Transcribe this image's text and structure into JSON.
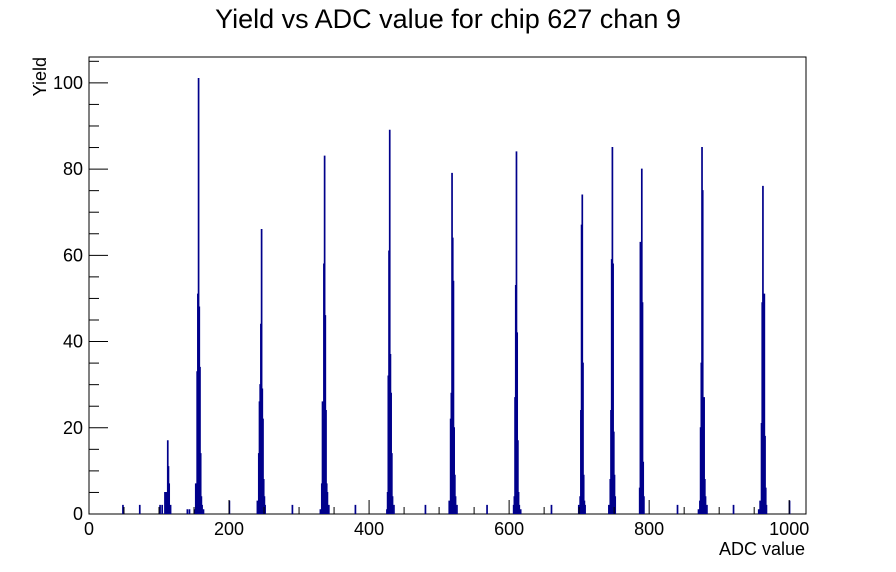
{
  "chart_data": {
    "type": "bar",
    "title": "Yield vs ADC value for chip 627 chan 9",
    "xlabel": "ADC value",
    "ylabel": "Yield",
    "xlim": [
      0,
      1024
    ],
    "ylim": [
      0,
      106
    ],
    "bin_width": 1,
    "xticks": [
      0,
      200,
      400,
      600,
      800,
      1000
    ],
    "yticks": [
      0,
      20,
      40,
      60,
      80,
      100
    ],
    "grid": false,
    "legend": "none",
    "series": [
      {
        "color": "#00008B",
        "points": [
          [
            48,
            2
          ],
          [
            72,
            2
          ],
          [
            101,
            2
          ],
          [
            104,
            2
          ],
          [
            108,
            5
          ],
          [
            110,
            5
          ],
          [
            112,
            17
          ],
          [
            113,
            11
          ],
          [
            114,
            7
          ],
          [
            116,
            2
          ],
          [
            140,
            1
          ],
          [
            143,
            1
          ],
          [
            150,
            1
          ],
          [
            152,
            7
          ],
          [
            154,
            33
          ],
          [
            155,
            51
          ],
          [
            156,
            101
          ],
          [
            157,
            48
          ],
          [
            158,
            34
          ],
          [
            159,
            14
          ],
          [
            160,
            4
          ],
          [
            161,
            2
          ],
          [
            163,
            1
          ],
          [
            200,
            3
          ],
          [
            240,
            3
          ],
          [
            242,
            14
          ],
          [
            243,
            26
          ],
          [
            244,
            30
          ],
          [
            245,
            44
          ],
          [
            246,
            66
          ],
          [
            247,
            29
          ],
          [
            248,
            22
          ],
          [
            249,
            8
          ],
          [
            250,
            4
          ],
          [
            251,
            2
          ],
          [
            290,
            2
          ],
          [
            330,
            1
          ],
          [
            332,
            7
          ],
          [
            333,
            26
          ],
          [
            334,
            22
          ],
          [
            335,
            58
          ],
          [
            336,
            83
          ],
          [
            337,
            46
          ],
          [
            338,
            24
          ],
          [
            339,
            7
          ],
          [
            340,
            5
          ],
          [
            342,
            2
          ],
          [
            380,
            2
          ],
          [
            425,
            1
          ],
          [
            426,
            5
          ],
          [
            427,
            32
          ],
          [
            428,
            61
          ],
          [
            429,
            89
          ],
          [
            430,
            37
          ],
          [
            431,
            28
          ],
          [
            432,
            14
          ],
          [
            433,
            4
          ],
          [
            435,
            2
          ],
          [
            480,
            2
          ],
          [
            514,
            3
          ],
          [
            516,
            22
          ],
          [
            517,
            28
          ],
          [
            518,
            79
          ],
          [
            519,
            64
          ],
          [
            520,
            54
          ],
          [
            521,
            20
          ],
          [
            522,
            9
          ],
          [
            523,
            4
          ],
          [
            525,
            2
          ],
          [
            568,
            2
          ],
          [
            606,
            2
          ],
          [
            607,
            4
          ],
          [
            608,
            27
          ],
          [
            609,
            53
          ],
          [
            610,
            84
          ],
          [
            611,
            42
          ],
          [
            612,
            17
          ],
          [
            613,
            5
          ],
          [
            614,
            2
          ],
          [
            616,
            1
          ],
          [
            660,
            2
          ],
          [
            699,
            2
          ],
          [
            701,
            4
          ],
          [
            702,
            24
          ],
          [
            703,
            67
          ],
          [
            704,
            74
          ],
          [
            705,
            35
          ],
          [
            706,
            9
          ],
          [
            707,
            3
          ],
          [
            708,
            2
          ],
          [
            742,
            2
          ],
          [
            744,
            8
          ],
          [
            745,
            24
          ],
          [
            746,
            59
          ],
          [
            747,
            85
          ],
          [
            748,
            58
          ],
          [
            749,
            19
          ],
          [
            750,
            9
          ],
          [
            751,
            4
          ],
          [
            786,
            6
          ],
          [
            787,
            63
          ],
          [
            788,
            39
          ],
          [
            789,
            80
          ],
          [
            790,
            49
          ],
          [
            791,
            12
          ],
          [
            792,
            4
          ],
          [
            840,
            2
          ],
          [
            870,
            1
          ],
          [
            872,
            3
          ],
          [
            873,
            20
          ],
          [
            874,
            35
          ],
          [
            875,
            85
          ],
          [
            876,
            75
          ],
          [
            877,
            23
          ],
          [
            878,
            27
          ],
          [
            879,
            8
          ],
          [
            880,
            4
          ],
          [
            882,
            2
          ],
          [
            920,
            2
          ],
          [
            956,
            1
          ],
          [
            958,
            3
          ],
          [
            960,
            21
          ],
          [
            961,
            49
          ],
          [
            962,
            76
          ],
          [
            963,
            46
          ],
          [
            964,
            51
          ],
          [
            965,
            18
          ],
          [
            966,
            6
          ],
          [
            967,
            2
          ],
          [
            1000,
            3
          ]
        ]
      }
    ]
  }
}
